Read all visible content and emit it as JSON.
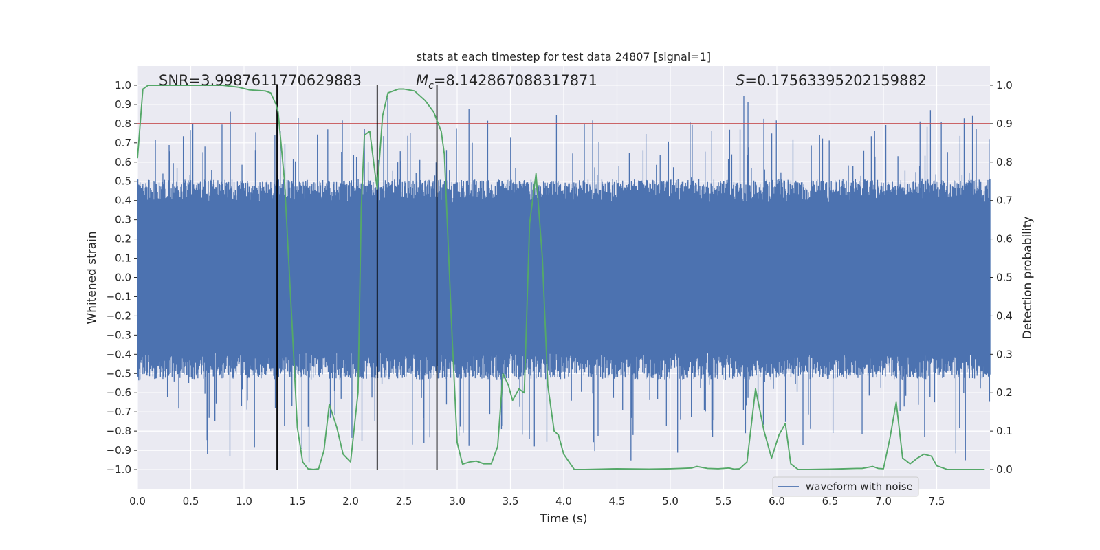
{
  "chart_data": {
    "type": "line",
    "title": "stats at each timestep for test data 24807 [signal=1]",
    "xlabel": "Time (s)",
    "ylabel": "Whitened strain",
    "y2label": "Detection probability",
    "xlim": [
      0.0,
      8.0
    ],
    "ylim": [
      -1.1,
      1.1
    ],
    "y2lim": [
      -0.05,
      1.05
    ],
    "x_ticks": [
      0.0,
      0.5,
      1.0,
      1.5,
      2.0,
      2.5,
      3.0,
      3.5,
      4.0,
      4.5,
      5.0,
      5.5,
      6.0,
      6.5,
      7.0,
      7.5
    ],
    "x_tick_labels": [
      "0.0",
      "0.5",
      "1.0",
      "1.5",
      "2.0",
      "2.5",
      "3.0",
      "3.5",
      "4.0",
      "4.5",
      "5.0",
      "5.5",
      "6.0",
      "6.5",
      "7.0",
      "7.5"
    ],
    "y_ticks": [
      -1.0,
      -0.9,
      -0.8,
      -0.7,
      -0.6,
      -0.5,
      -0.4,
      -0.3,
      -0.2,
      -0.1,
      0.0,
      0.1,
      0.2,
      0.3,
      0.4,
      0.5,
      0.6,
      0.7,
      0.8,
      0.9,
      1.0
    ],
    "y_tick_labels": [
      "−1.0",
      "−0.9",
      "−0.8",
      "−0.7",
      "−0.6",
      "−0.5",
      "−0.4",
      "−0.3",
      "−0.2",
      "−0.1",
      "0.0",
      "0.1",
      "0.2",
      "0.3",
      "0.4",
      "0.5",
      "0.6",
      "0.7",
      "0.8",
      "0.9",
      "1.0"
    ],
    "y2_ticks": [
      0.0,
      0.1,
      0.2,
      0.3,
      0.4,
      0.5,
      0.6,
      0.7,
      0.8,
      0.9,
      1.0
    ],
    "y2_tick_labels": [
      "0.0",
      "0.1",
      "0.2",
      "0.3",
      "0.4",
      "0.5",
      "0.6",
      "0.7",
      "0.8",
      "0.9",
      "1.0"
    ],
    "grid": true,
    "legend": {
      "position": "lower-right",
      "entries": [
        "waveform with noise"
      ]
    },
    "annotations": {
      "snr": "SNR=3.9987611770629883",
      "mc_symbol": "M",
      "mc_subscript": "c",
      "mc_value": "=8.142867088317871",
      "s_symbol": "S",
      "s_value": "=0.17563395202159882"
    },
    "threshold": {
      "value": 0.9,
      "axis": "y2",
      "color": "#c44e52"
    },
    "vertical_markers": [
      1.31,
      2.25,
      2.81
    ],
    "waveform": {
      "name": "waveform with noise",
      "color": "#4c72b0",
      "duration": 8.0,
      "samples": 2048,
      "core_envelope": 0.39,
      "max_abs": 1.0
    },
    "series": [
      {
        "name": "detection probability",
        "axis": "y2",
        "color": "#55a868",
        "x": [
          0.0,
          0.05,
          0.1,
          0.2,
          0.4,
          0.6,
          0.8,
          0.95,
          1.05,
          1.2,
          1.25,
          1.3,
          1.32,
          1.38,
          1.45,
          1.5,
          1.55,
          1.6,
          1.65,
          1.7,
          1.75,
          1.8,
          1.87,
          1.93,
          2.0,
          2.07,
          2.1,
          2.13,
          2.18,
          2.23,
          2.25,
          2.3,
          2.35,
          2.4,
          2.45,
          2.5,
          2.6,
          2.7,
          2.78,
          2.85,
          2.88,
          2.95,
          3.0,
          3.05,
          3.12,
          3.18,
          3.25,
          3.32,
          3.38,
          3.43,
          3.48,
          3.52,
          3.58,
          3.63,
          3.68,
          3.74,
          3.8,
          3.85,
          3.91,
          3.95,
          4.0,
          4.05,
          4.1,
          4.2,
          4.35,
          4.5,
          4.8,
          5.0,
          5.1,
          5.2,
          5.25,
          5.35,
          5.45,
          5.55,
          5.6,
          5.65,
          5.72,
          5.8,
          5.88,
          5.95,
          6.02,
          6.08,
          6.13,
          6.2,
          6.3,
          6.5,
          6.75,
          6.8,
          6.9,
          6.95,
          7.0,
          7.06,
          7.12,
          7.18,
          7.25,
          7.32,
          7.38,
          7.45,
          7.5,
          7.6,
          7.8,
          7.95
        ],
        "y": [
          0.81,
          0.99,
          1.0,
          1.0,
          1.0,
          1.0,
          1.0,
          0.995,
          0.988,
          0.985,
          0.98,
          0.95,
          0.93,
          0.75,
          0.38,
          0.11,
          0.02,
          0.002,
          0.0,
          0.002,
          0.05,
          0.17,
          0.11,
          0.04,
          0.02,
          0.2,
          0.68,
          0.87,
          0.88,
          0.77,
          0.73,
          0.92,
          0.98,
          0.985,
          0.99,
          0.99,
          0.985,
          0.96,
          0.93,
          0.88,
          0.82,
          0.36,
          0.07,
          0.014,
          0.02,
          0.022,
          0.015,
          0.015,
          0.06,
          0.25,
          0.22,
          0.18,
          0.21,
          0.2,
          0.64,
          0.77,
          0.55,
          0.22,
          0.1,
          0.09,
          0.04,
          0.02,
          0.0,
          0.0,
          0.001,
          0.002,
          0.001,
          0.002,
          0.003,
          0.004,
          0.008,
          0.003,
          0.002,
          0.004,
          0.001,
          0.002,
          0.02,
          0.21,
          0.1,
          0.03,
          0.09,
          0.12,
          0.015,
          0.0,
          0.0,
          0.001,
          0.003,
          0.003,
          0.008,
          0.003,
          0.002,
          0.08,
          0.175,
          0.03,
          0.015,
          0.03,
          0.04,
          0.035,
          0.01,
          0.0,
          0.0,
          0.0
        ]
      }
    ]
  }
}
